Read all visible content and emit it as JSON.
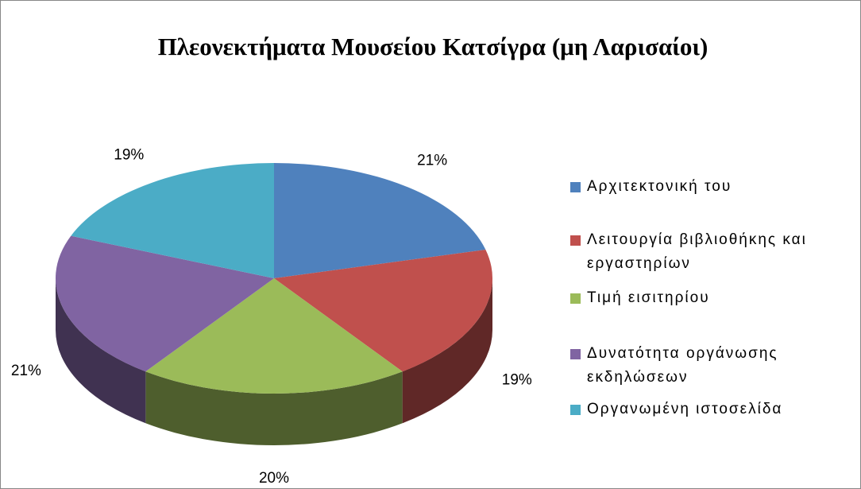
{
  "chart_data": {
    "type": "pie3d",
    "title": "Πλεονεκτήματα Μουσείου Κατσίγρα (μη Λαρισαίοι)",
    "categories": [
      "Αρχιτεκτονική του",
      "Λειτουργία βιβλιοθήκης και εργαστηρίων",
      "Τιμή εισιτηρίου",
      "Δυνατότητα οργάνωσης εκδηλώσεων",
      "Οργανωμένη ιστοσελίδα"
    ],
    "values": [
      21,
      19,
      20,
      21,
      19
    ],
    "value_labels": [
      "21%",
      "19%",
      "20%",
      "21%",
      "19%"
    ],
    "colors": [
      "#4f81bd",
      "#c0504d",
      "#9bbb59",
      "#8064a2",
      "#4bacc6"
    ],
    "legend": "right"
  }
}
